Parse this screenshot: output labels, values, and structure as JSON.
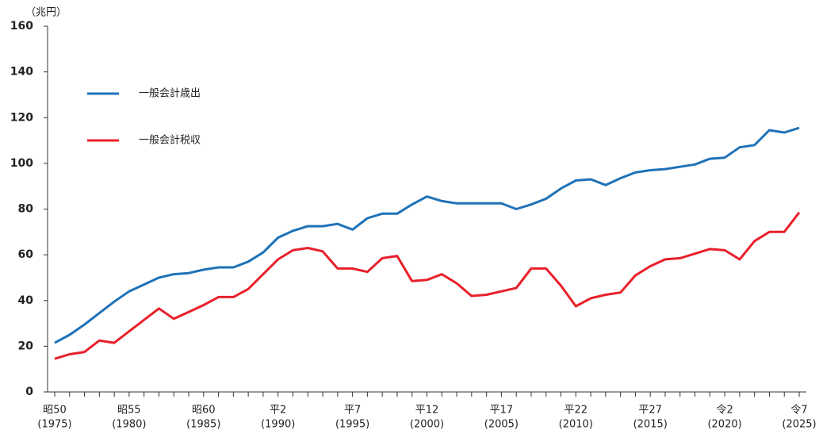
{
  "chart_data": {
    "type": "line",
    "y_axis_label": "（兆円）",
    "categories": [
      "昭50",
      null,
      null,
      null,
      null,
      "昭55",
      null,
      null,
      null,
      null,
      "昭60",
      null,
      null,
      null,
      null,
      "平2",
      null,
      null,
      null,
      null,
      "平7",
      null,
      null,
      null,
      null,
      "平12",
      null,
      null,
      null,
      null,
      "平17",
      null,
      null,
      null,
      null,
      "平22",
      null,
      null,
      null,
      null,
      "平27",
      null,
      null,
      null,
      null,
      "令2",
      null,
      null,
      null,
      null,
      "令7"
    ],
    "category_years": [
      "(1975)",
      null,
      null,
      null,
      null,
      "(1980)",
      null,
      null,
      null,
      null,
      "(1985)",
      null,
      null,
      null,
      null,
      "(1990)",
      null,
      null,
      null,
      null,
      "(1995)",
      null,
      null,
      null,
      null,
      "(2000)",
      null,
      null,
      null,
      null,
      "(2005)",
      null,
      null,
      null,
      null,
      "(2010)",
      null,
      null,
      null,
      null,
      "(2015)",
      null,
      null,
      null,
      null,
      "(2020)",
      null,
      null,
      null,
      null,
      "(2025)"
    ],
    "series": [
      {
        "name": "一般会計歳出",
        "color": "#1f72b8",
        "values": [
          21.5,
          25,
          29.5,
          34.5,
          39.5,
          44,
          47,
          50,
          51.5,
          52,
          53.5,
          54.5,
          54.5,
          57,
          61,
          67.5,
          70.5,
          72.5,
          72.5,
          73.5,
          71,
          76,
          78,
          78,
          82,
          85.5,
          83.5,
          82.5,
          82.5,
          82.5,
          82.5,
          80,
          82,
          84.5,
          89,
          92.5,
          93,
          90.5,
          93.5,
          96,
          97,
          97.5,
          98.5,
          99.5,
          102,
          102.5,
          107,
          108,
          114.5,
          113.5,
          115.5
        ]
      },
      {
        "name": "一般会計税収",
        "color": "#e8202a",
        "values": [
          14.5,
          16.5,
          17.5,
          22.5,
          21.5,
          26.5,
          31.5,
          36.5,
          32,
          35,
          38,
          41.5,
          41.5,
          45,
          51.5,
          58,
          62,
          63,
          61.5,
          54,
          54,
          52.5,
          58.5,
          59.5,
          48.5,
          49,
          51.5,
          47.5,
          42,
          42.5,
          44,
          45.5,
          54,
          54,
          46.5,
          37.5,
          41,
          42.5,
          43.5,
          51,
          55,
          58,
          58.5,
          60.5,
          62.5,
          62,
          58,
          66,
          70,
          70,
          78.5
        ]
      }
    ],
    "ylim": [
      0,
      160
    ],
    "yticks": [
      0,
      20,
      40,
      60,
      80,
      100,
      120,
      140,
      160
    ],
    "grid": false,
    "legend": "upper left"
  }
}
